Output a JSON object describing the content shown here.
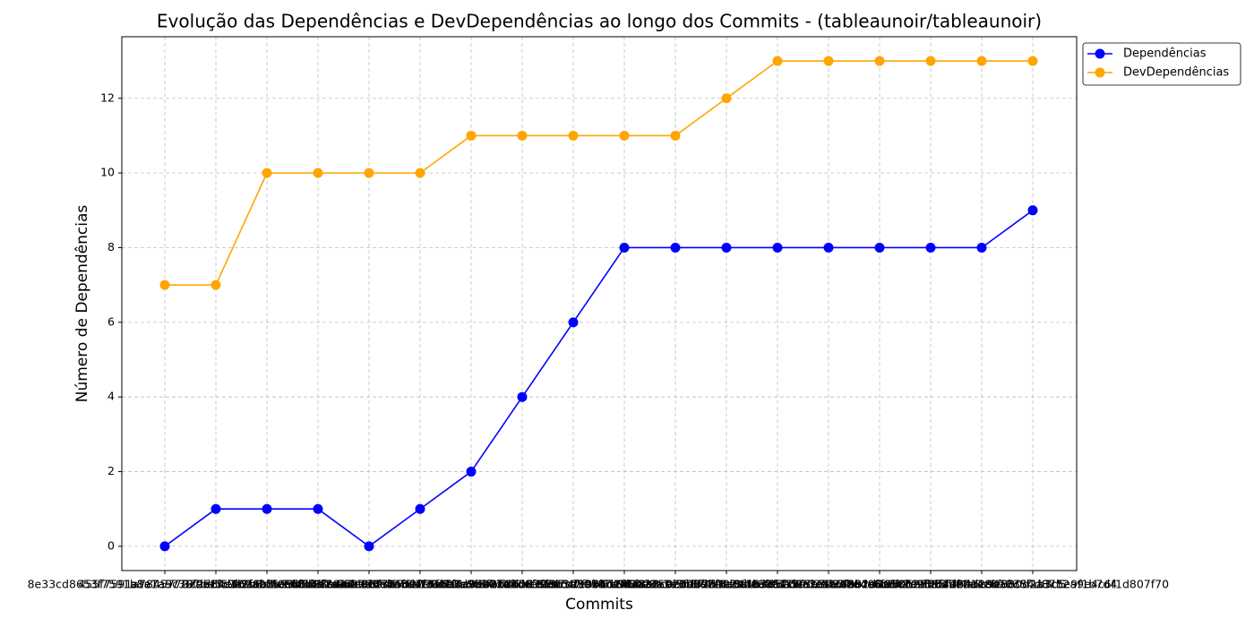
{
  "chart_data": {
    "type": "line",
    "title": "Evolução das Dependências e DevDependências ao longo dos Commits - (tableaunoir/tableaunoir)",
    "xlabel": "Commits",
    "ylabel": "Número de Dependências",
    "categories": [
      "8e33cd8653f7591a8a1a57797ba5c0e1f6b3a2d4",
      "455f7591a78457797e5c3d1b9a0f2e6c8d4b7a13",
      "b1e7a9c35f2d84e06a1c7b93d5f28e4a0c6b9d17",
      "3c9e1f57a2b8d40e6f13a7c95b2d8e04f6a1c3b9",
      "f07a2c5e9b1d3f86a4e0c27b5d9f13e8a6c04b2d",
      "5d3b8f1a7c2e9064b5d1f3a8c7e2b90d4f6a1e35",
      "a6c1e8f3b5d27904e1a6c3f8b2d5e79a0c4f1b86",
      "2e8a4c6f1b3d95e07a2c4e6f8b1d3a5c7e9f0b24",
      "c7f2a9e4b1d6083f5a7c2e9b4d1f6a8e3c0b5d72",
      "91b4d6f8a2c3e5071b4d6f8a2c9e3b5d7f1a0c46",
      "e3a5c7f9b1d2460e8a3c5f7b9d1e2a4c6f8b0d13",
      "4f6b8d1a3c5e7092f4b6d8a1c3e5f7b9d2a4c6e8",
      "d8e1a3c5f7b9024d6e8a1c3f5b7d9e2a4c6f8b01",
      "6a2c4e8f1b3d5709a2c4e6f8b1d3a5c7e9f2b4d6",
      "b9d1f3a5c7e8024b6d9f1a3c5e7b8d2f4a6c9e03",
      "0c3e5a7f9b2d4618c0e3a5f7b9d2e4a6c8f1b3d5",
      "7e4a6c8f0b2d3519e7a4c6f8b0d2a3c5e9f1b7d4",
      "c1e2b8f7d2d1e8b12354d8712a9e4c6f1d807f70"
    ],
    "series": [
      {
        "name": "Dependências",
        "color": "#0000ff",
        "values": [
          0,
          1,
          1,
          1,
          0,
          1,
          2,
          4,
          6,
          8,
          8,
          8,
          8,
          8,
          8,
          8,
          8,
          9
        ]
      },
      {
        "name": "DevDependências",
        "color": "#ffa500",
        "values": [
          7,
          7,
          10,
          10,
          10,
          10,
          11,
          11,
          11,
          11,
          11,
          12,
          13,
          13,
          13,
          13,
          13,
          13
        ]
      }
    ],
    "ylim": [
      -0.65,
      13.65
    ],
    "yticks": [
      0,
      2,
      4,
      6,
      8,
      10,
      12
    ],
    "grid": true,
    "legend": "upper right outside"
  }
}
